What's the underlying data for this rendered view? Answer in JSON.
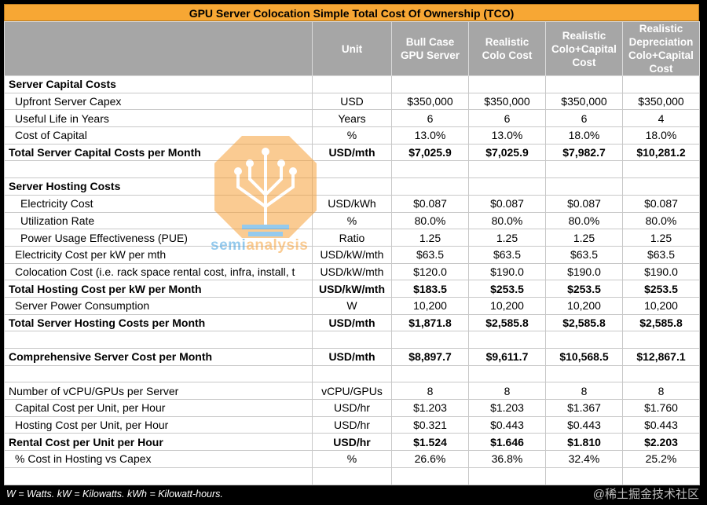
{
  "title": "GPU Server Colocation Simple Total Cost Of Ownership (TCO)",
  "columns": [
    "",
    "Unit",
    "Bull Case GPU Server",
    "Realistic Colo Cost",
    "Realistic Colo+Capital Cost",
    "Realistic Depreciation Colo+Capital Cost"
  ],
  "rows": [
    {
      "style": "bold",
      "indent": 0,
      "label": "Server Capital Costs",
      "unit": "",
      "v": [
        "",
        "",
        "",
        ""
      ]
    },
    {
      "style": "",
      "indent": 1,
      "label": "Upfront Server Capex",
      "unit": "USD",
      "v": [
        "$350,000",
        "$350,000",
        "$350,000",
        "$350,000"
      ]
    },
    {
      "style": "",
      "indent": 1,
      "label": "Useful Life in Years",
      "unit": "Years",
      "v": [
        "6",
        "6",
        "6",
        "4"
      ]
    },
    {
      "style": "",
      "indent": 1,
      "label": "Cost of Capital",
      "unit": "%",
      "v": [
        "13.0%",
        "13.0%",
        "18.0%",
        "18.0%"
      ]
    },
    {
      "style": "bold",
      "indent": 0,
      "label": "Total Server Capital Costs per Month",
      "unit": "USD/mth",
      "v": [
        "$7,025.9",
        "$7,025.9",
        "$7,982.7",
        "$10,281.2"
      ]
    },
    {
      "style": "blank",
      "indent": 0,
      "label": "",
      "unit": "",
      "v": [
        "",
        "",
        "",
        ""
      ]
    },
    {
      "style": "bold",
      "indent": 0,
      "label": "Server Hosting Costs",
      "unit": "",
      "v": [
        "",
        "",
        "",
        ""
      ]
    },
    {
      "style": "",
      "indent": 2,
      "label": "Electricity Cost",
      "unit": "USD/kWh",
      "v": [
        "$0.087",
        "$0.087",
        "$0.087",
        "$0.087"
      ]
    },
    {
      "style": "",
      "indent": 2,
      "label": "Utilization Rate",
      "unit": "%",
      "v": [
        "80.0%",
        "80.0%",
        "80.0%",
        "80.0%"
      ]
    },
    {
      "style": "",
      "indent": 2,
      "label": "Power Usage Effectiveness (PUE)",
      "unit": "Ratio",
      "v": [
        "1.25",
        "1.25",
        "1.25",
        "1.25"
      ]
    },
    {
      "style": "",
      "indent": 1,
      "label": "Electricity Cost per kW per mth",
      "unit": "USD/kW/mth",
      "v": [
        "$63.5",
        "$63.5",
        "$63.5",
        "$63.5"
      ]
    },
    {
      "style": "",
      "indent": 1,
      "label": "Colocation Cost (i.e. rack space rental cost, infra, install, t",
      "unit": "USD/kW/mth",
      "v": [
        "$120.0",
        "$190.0",
        "$190.0",
        "$190.0"
      ]
    },
    {
      "style": "bold",
      "indent": 0,
      "label": "Total Hosting Cost per kW per Month",
      "unit": "USD/kW/mth",
      "v": [
        "$183.5",
        "$253.5",
        "$253.5",
        "$253.5"
      ]
    },
    {
      "style": "",
      "indent": 1,
      "label": "Server Power Consumption",
      "unit": "W",
      "v": [
        "10,200",
        "10,200",
        "10,200",
        "10,200"
      ]
    },
    {
      "style": "bold",
      "indent": 0,
      "label": "Total Server Hosting Costs per Month",
      "unit": "USD/mth",
      "v": [
        "$1,871.8",
        "$2,585.8",
        "$2,585.8",
        "$2,585.8"
      ]
    },
    {
      "style": "blank",
      "indent": 0,
      "label": "",
      "unit": "",
      "v": [
        "",
        "",
        "",
        ""
      ]
    },
    {
      "style": "bold",
      "indent": 0,
      "label": "Comprehensive Server Cost per Month",
      "unit": "USD/mth",
      "v": [
        "$8,897.7",
        "$9,611.7",
        "$10,568.5",
        "$12,867.1"
      ]
    },
    {
      "style": "blank",
      "indent": 0,
      "label": "",
      "unit": "",
      "v": [
        "",
        "",
        "",
        ""
      ]
    },
    {
      "style": "",
      "indent": 0,
      "label": "Number of vCPU/GPUs per Server",
      "unit": "vCPU/GPUs",
      "v": [
        "8",
        "8",
        "8",
        "8"
      ]
    },
    {
      "style": "",
      "indent": 1,
      "label": "Capital Cost per Unit, per Hour",
      "unit": "USD/hr",
      "v": [
        "$1.203",
        "$1.203",
        "$1.367",
        "$1.760"
      ]
    },
    {
      "style": "",
      "indent": 1,
      "label": "Hosting Cost per Unit, per Hour",
      "unit": "USD/hr",
      "v": [
        "$0.321",
        "$0.443",
        "$0.443",
        "$0.443"
      ]
    },
    {
      "style": "bold",
      "indent": 0,
      "label": "Rental Cost per Unit per Hour",
      "unit": "USD/hr",
      "v": [
        "$1.524",
        "$1.646",
        "$1.810",
        "$2.203"
      ]
    },
    {
      "style": "",
      "indent": 1,
      "label": "% Cost in Hosting vs Capex",
      "unit": "%",
      "v": [
        "26.6%",
        "36.8%",
        "32.4%",
        "25.2%"
      ]
    },
    {
      "style": "blank",
      "indent": 0,
      "label": "",
      "unit": "",
      "v": [
        "",
        "",
        "",
        ""
      ]
    }
  ],
  "footnote": "W = Watts. kW = Kilowatts. kWh = Kilowatt-hours.",
  "watermark": {
    "part1": "semi",
    "part2": "analysis"
  },
  "site_watermark": "@稀土掘金技术社区",
  "colors": {
    "title_bg": "#f7a734",
    "header_bg": "#a6a6a6",
    "logo_orange": "#f6a13a",
    "logo_blue": "#3fa0e0"
  }
}
